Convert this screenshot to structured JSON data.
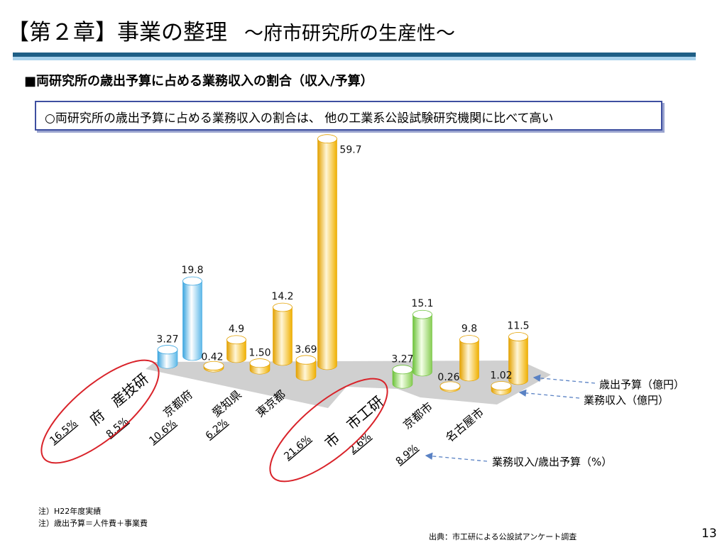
{
  "header": {
    "title": "【第２章】事業の整理",
    "subtitle": "～府市研究所の生産性～"
  },
  "section": {
    "heading": "■両研究所の歳出予算に占める業務収入の割合（収入/予算）"
  },
  "summary": {
    "text": "○両研究所の歳出予算に占める業務収入の割合は、 他の工業系公設試験研究機関に比べて高い"
  },
  "legend": {
    "budget": "歳出予算（億円）",
    "income": "業務収入（億円）",
    "ratio": "業務収入/歳出予算（%）"
  },
  "chart_data": {
    "type": "bar",
    "subtype": "3d-cylinder",
    "categories": [
      "府　産技研",
      "京都府",
      "愛知県",
      "東京都",
      "市　市工研",
      "京都市",
      "名古屋市"
    ],
    "series": [
      {
        "name": "歳出予算（億円）",
        "values": [
          19.8,
          4.9,
          14.2,
          59.7,
          15.1,
          9.8,
          11.5
        ],
        "labels": [
          "19.8",
          "4.9",
          "14.2",
          "59.7",
          "15.1",
          "9.8",
          "11.5"
        ]
      },
      {
        "name": "業務収入（億円）",
        "values": [
          3.27,
          0.42,
          1.5,
          3.69,
          3.27,
          0.26,
          1.02
        ],
        "labels": [
          "3.27",
          "0.42",
          "1.50",
          "3.69",
          "3.27",
          "0.26",
          "1.02"
        ]
      },
      {
        "name": "業務収入/歳出予算（%）",
        "values": [
          16.5,
          8.5,
          10.6,
          6.2,
          21.6,
          2.6,
          8.9
        ],
        "labels": [
          "16.5%",
          "8.5%",
          "10.6%",
          "6.2%",
          "21.6%",
          "2.6%",
          "8.9%"
        ]
      }
    ],
    "highlighted": [
      "府　産技研",
      "市　市工研"
    ],
    "colors": {
      "osaka_pref": "#6cc4ee",
      "osaka_city": "#8fd15a",
      "others": "#f3b300",
      "floor": "#d0d0d0",
      "highlight_ring": "#d9232a",
      "legend_arrow": "#5a82c4"
    }
  },
  "notes": {
    "note1": "注）H22年度実績",
    "note2": "注）歳出予算＝人件費＋事業費"
  },
  "footer": {
    "source": "出典：市工研による公設試アンケート調査",
    "page": "13"
  }
}
